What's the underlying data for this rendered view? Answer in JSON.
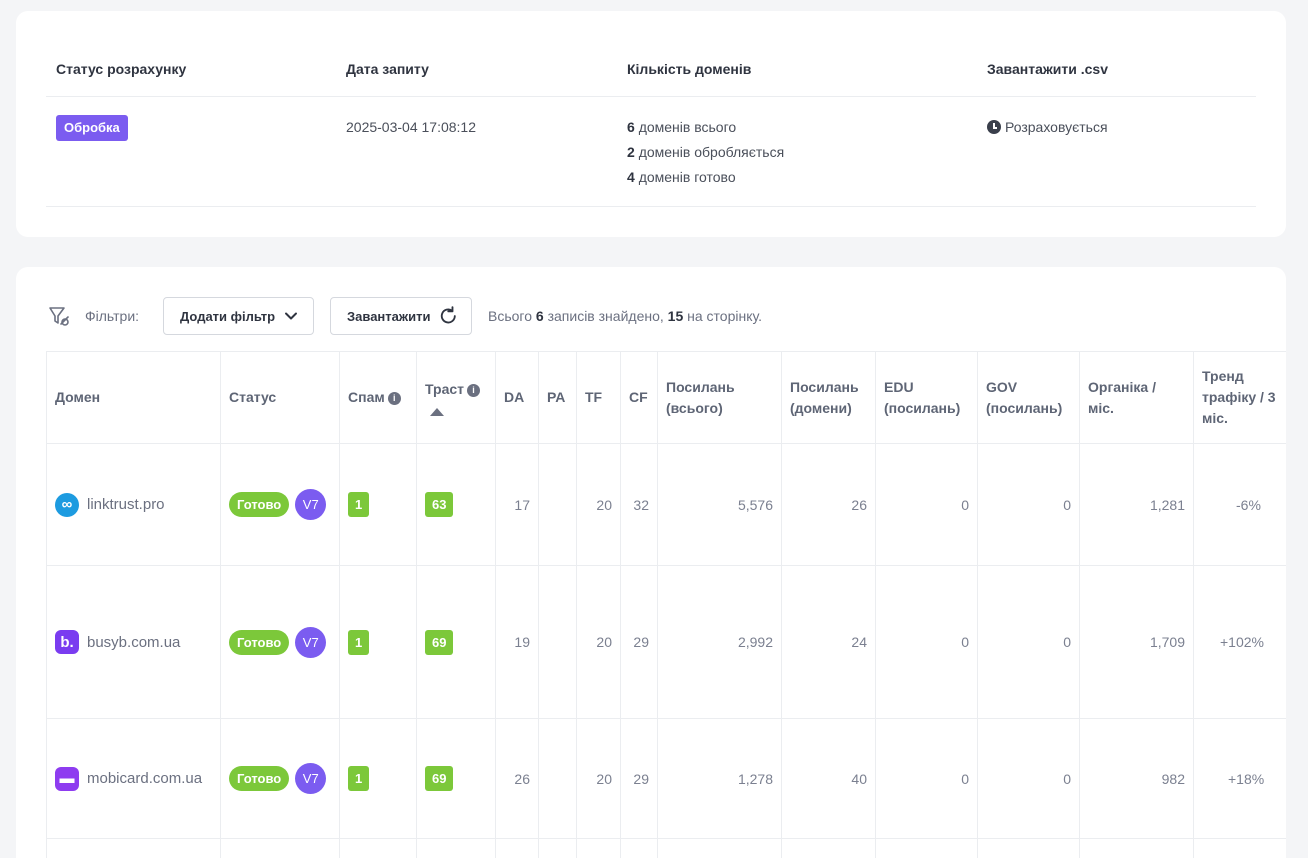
{
  "summary": {
    "headers": {
      "status": "Статус розрахунку",
      "date": "Дата запиту",
      "domains": "Кількість доменів",
      "download": "Завантажити .csv"
    },
    "status_badge": "Обробка",
    "date_value": "2025-03-04 17:08:12",
    "domains_total": {
      "count": "6",
      "label": "доменів всього"
    },
    "domains_processing": {
      "count": "2",
      "label": "доменів обробляється"
    },
    "domains_ready": {
      "count": "4",
      "label": "доменів готово"
    },
    "download_status": "Розраховується"
  },
  "toolbar": {
    "filters_label": "Фільтри:",
    "add_filter": "Додати фільтр",
    "load": "Завантажити",
    "records_prefix": "Всього",
    "records_total": "6",
    "records_mid": "записів знайдено,",
    "records_per_page": "15",
    "records_suffix": "на сторінку."
  },
  "table": {
    "columns": {
      "domain": "Домен",
      "status": "Статус",
      "spam": "Спам",
      "trust": "Траст",
      "da": "DA",
      "pa": "PA",
      "tf": "TF",
      "cf": "CF",
      "links_total": "Посилань (всього)",
      "links_domains": "Посилань (домени)",
      "edu": "EDU (посилань)",
      "gov": "GOV (посилань)",
      "organic": "Органіка / міс.",
      "trend": "Тренд трафіку / 3 міс."
    },
    "rows": [
      {
        "domain": "linktrust.pro",
        "status": "Готово",
        "version": "V7",
        "spam": "1",
        "trust": "63",
        "da": "17",
        "pa": "",
        "tf": "20",
        "cf": "32",
        "links_total": "5,576",
        "links_domains": "26",
        "edu": "0",
        "gov": "0",
        "organic": "1,281",
        "trend": "-6%"
      },
      {
        "domain": "busyb.com.ua",
        "status": "Готово",
        "version": "V7",
        "spam": "1",
        "trust": "69",
        "da": "19",
        "pa": "",
        "tf": "20",
        "cf": "29",
        "links_total": "2,992",
        "links_domains": "24",
        "edu": "0",
        "gov": "0",
        "organic": "1,709",
        "trend": "+102%"
      },
      {
        "domain": "mobicard.com.ua",
        "status": "Готово",
        "version": "V7",
        "spam": "1",
        "trust": "69",
        "da": "26",
        "pa": "",
        "tf": "20",
        "cf": "29",
        "links_total": "1,278",
        "links_domains": "40",
        "edu": "0",
        "gov": "0",
        "organic": "982",
        "trend": "+18%"
      }
    ]
  },
  "colors": {
    "accent_purple": "#7b5cf0",
    "ready_green": "#7cc83a",
    "negative": "#e0524f",
    "positive": "#6cc24a"
  },
  "icons": [
    "filter-icon",
    "chevron-down-icon",
    "refresh-icon",
    "clock-icon",
    "info-icon",
    "sort-up-icon"
  ]
}
